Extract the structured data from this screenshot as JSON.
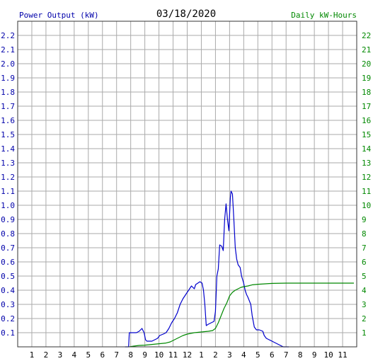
{
  "chart_data": {
    "type": "line",
    "title": "03/18/2020",
    "left_axis_label": "Power Output (kW)",
    "right_axis_label": "Daily kW-Hours",
    "x_tick_labels": [
      "1",
      "2",
      "3",
      "4",
      "5",
      "6",
      "7",
      "8",
      "9",
      "10",
      "11",
      "12",
      "1",
      "2",
      "3",
      "4",
      "5",
      "6",
      "7",
      "8",
      "9",
      "10",
      "11"
    ],
    "x_range_hours": [
      0,
      24
    ],
    "left_ylim": [
      0,
      2.3
    ],
    "left_ticks": [
      "0.1",
      "0.2",
      "0.3",
      "0.4",
      "0.5",
      "0.6",
      "0.7",
      "0.8",
      "0.9",
      "1.0",
      "1.1",
      "1.2",
      "1.3",
      "1.4",
      "1.5",
      "1.6",
      "1.7",
      "1.8",
      "1.9",
      "2.0",
      "2.1",
      "2.2"
    ],
    "right_ylim": [
      0,
      23
    ],
    "right_ticks": [
      "1",
      "2",
      "3",
      "4",
      "5",
      "6",
      "7",
      "8",
      "9",
      "10",
      "11",
      "12",
      "13",
      "14",
      "15",
      "16",
      "17",
      "18",
      "19",
      "20",
      "21",
      "22"
    ],
    "grid": true,
    "colors": {
      "power": "#0000cc",
      "energy": "#008800",
      "left_axis_text": "#0000aa",
      "right_axis_text": "#008800",
      "grid": "#aaaaaa",
      "title": "#000000"
    },
    "series": [
      {
        "name": "Power Output (kW)",
        "axis": "left",
        "color": "#0000cc",
        "points": [
          [
            7.6,
            0.0
          ],
          [
            7.85,
            0.0
          ],
          [
            7.9,
            0.1
          ],
          [
            8.2,
            0.1
          ],
          [
            8.4,
            0.1
          ],
          [
            8.6,
            0.11
          ],
          [
            8.8,
            0.13
          ],
          [
            8.95,
            0.1
          ],
          [
            9.05,
            0.05
          ],
          [
            9.15,
            0.04
          ],
          [
            9.5,
            0.04
          ],
          [
            9.7,
            0.05
          ],
          [
            9.9,
            0.06
          ],
          [
            10.05,
            0.08
          ],
          [
            10.3,
            0.09
          ],
          [
            10.5,
            0.1
          ],
          [
            10.7,
            0.13
          ],
          [
            10.9,
            0.17
          ],
          [
            11.1,
            0.2
          ],
          [
            11.3,
            0.24
          ],
          [
            11.5,
            0.3
          ],
          [
            11.7,
            0.34
          ],
          [
            11.9,
            0.37
          ],
          [
            12.1,
            0.4
          ],
          [
            12.3,
            0.43
          ],
          [
            12.5,
            0.41
          ],
          [
            12.6,
            0.44
          ],
          [
            12.75,
            0.45
          ],
          [
            12.9,
            0.46
          ],
          [
            13.05,
            0.45
          ],
          [
            13.15,
            0.4
          ],
          [
            13.25,
            0.3
          ],
          [
            13.35,
            0.15
          ],
          [
            13.5,
            0.16
          ],
          [
            13.7,
            0.17
          ],
          [
            13.9,
            0.18
          ],
          [
            14.0,
            0.25
          ],
          [
            14.1,
            0.5
          ],
          [
            14.2,
            0.55
          ],
          [
            14.3,
            0.72
          ],
          [
            14.45,
            0.71
          ],
          [
            14.55,
            0.68
          ],
          [
            14.65,
            0.9
          ],
          [
            14.75,
            1.01
          ],
          [
            14.85,
            0.9
          ],
          [
            14.95,
            0.82
          ],
          [
            15.05,
            1.05
          ],
          [
            15.1,
            1.1
          ],
          [
            15.2,
            1.08
          ],
          [
            15.3,
            0.9
          ],
          [
            15.4,
            0.7
          ],
          [
            15.5,
            0.62
          ],
          [
            15.6,
            0.58
          ],
          [
            15.75,
            0.56
          ],
          [
            15.85,
            0.5
          ],
          [
            16.0,
            0.45
          ],
          [
            16.1,
            0.4
          ],
          [
            16.2,
            0.37
          ],
          [
            16.3,
            0.35
          ],
          [
            16.5,
            0.3
          ],
          [
            16.6,
            0.22
          ],
          [
            16.75,
            0.14
          ],
          [
            16.9,
            0.12
          ],
          [
            17.1,
            0.12
          ],
          [
            17.35,
            0.11
          ],
          [
            17.45,
            0.08
          ],
          [
            17.6,
            0.06
          ],
          [
            17.8,
            0.05
          ],
          [
            18.0,
            0.04
          ],
          [
            18.2,
            0.03
          ],
          [
            18.4,
            0.02
          ],
          [
            18.6,
            0.01
          ],
          [
            18.8,
            0.0
          ],
          [
            19.2,
            0.0
          ]
        ]
      },
      {
        "name": "Daily kW-Hours",
        "axis": "right",
        "color": "#008800",
        "points": [
          [
            7.9,
            0.0
          ],
          [
            8.2,
            0.05
          ],
          [
            8.6,
            0.1
          ],
          [
            9.0,
            0.12
          ],
          [
            9.5,
            0.17
          ],
          [
            10.0,
            0.22
          ],
          [
            10.5,
            0.27
          ],
          [
            10.8,
            0.35
          ],
          [
            11.1,
            0.5
          ],
          [
            11.4,
            0.65
          ],
          [
            11.7,
            0.8
          ],
          [
            12.0,
            0.9
          ],
          [
            12.5,
            1.0
          ],
          [
            13.0,
            1.05
          ],
          [
            13.5,
            1.1
          ],
          [
            13.8,
            1.15
          ],
          [
            14.0,
            1.3
          ],
          [
            14.2,
            1.7
          ],
          [
            14.4,
            2.2
          ],
          [
            14.6,
            2.7
          ],
          [
            14.8,
            3.1
          ],
          [
            15.0,
            3.6
          ],
          [
            15.2,
            3.85
          ],
          [
            15.4,
            4.0
          ],
          [
            15.6,
            4.1
          ],
          [
            15.8,
            4.2
          ],
          [
            16.0,
            4.25
          ],
          [
            16.3,
            4.3
          ],
          [
            16.6,
            4.38
          ],
          [
            17.0,
            4.42
          ],
          [
            17.5,
            4.45
          ],
          [
            18.0,
            4.48
          ],
          [
            19.0,
            4.5
          ],
          [
            20.0,
            4.5
          ],
          [
            23.8,
            4.5
          ]
        ]
      }
    ]
  }
}
